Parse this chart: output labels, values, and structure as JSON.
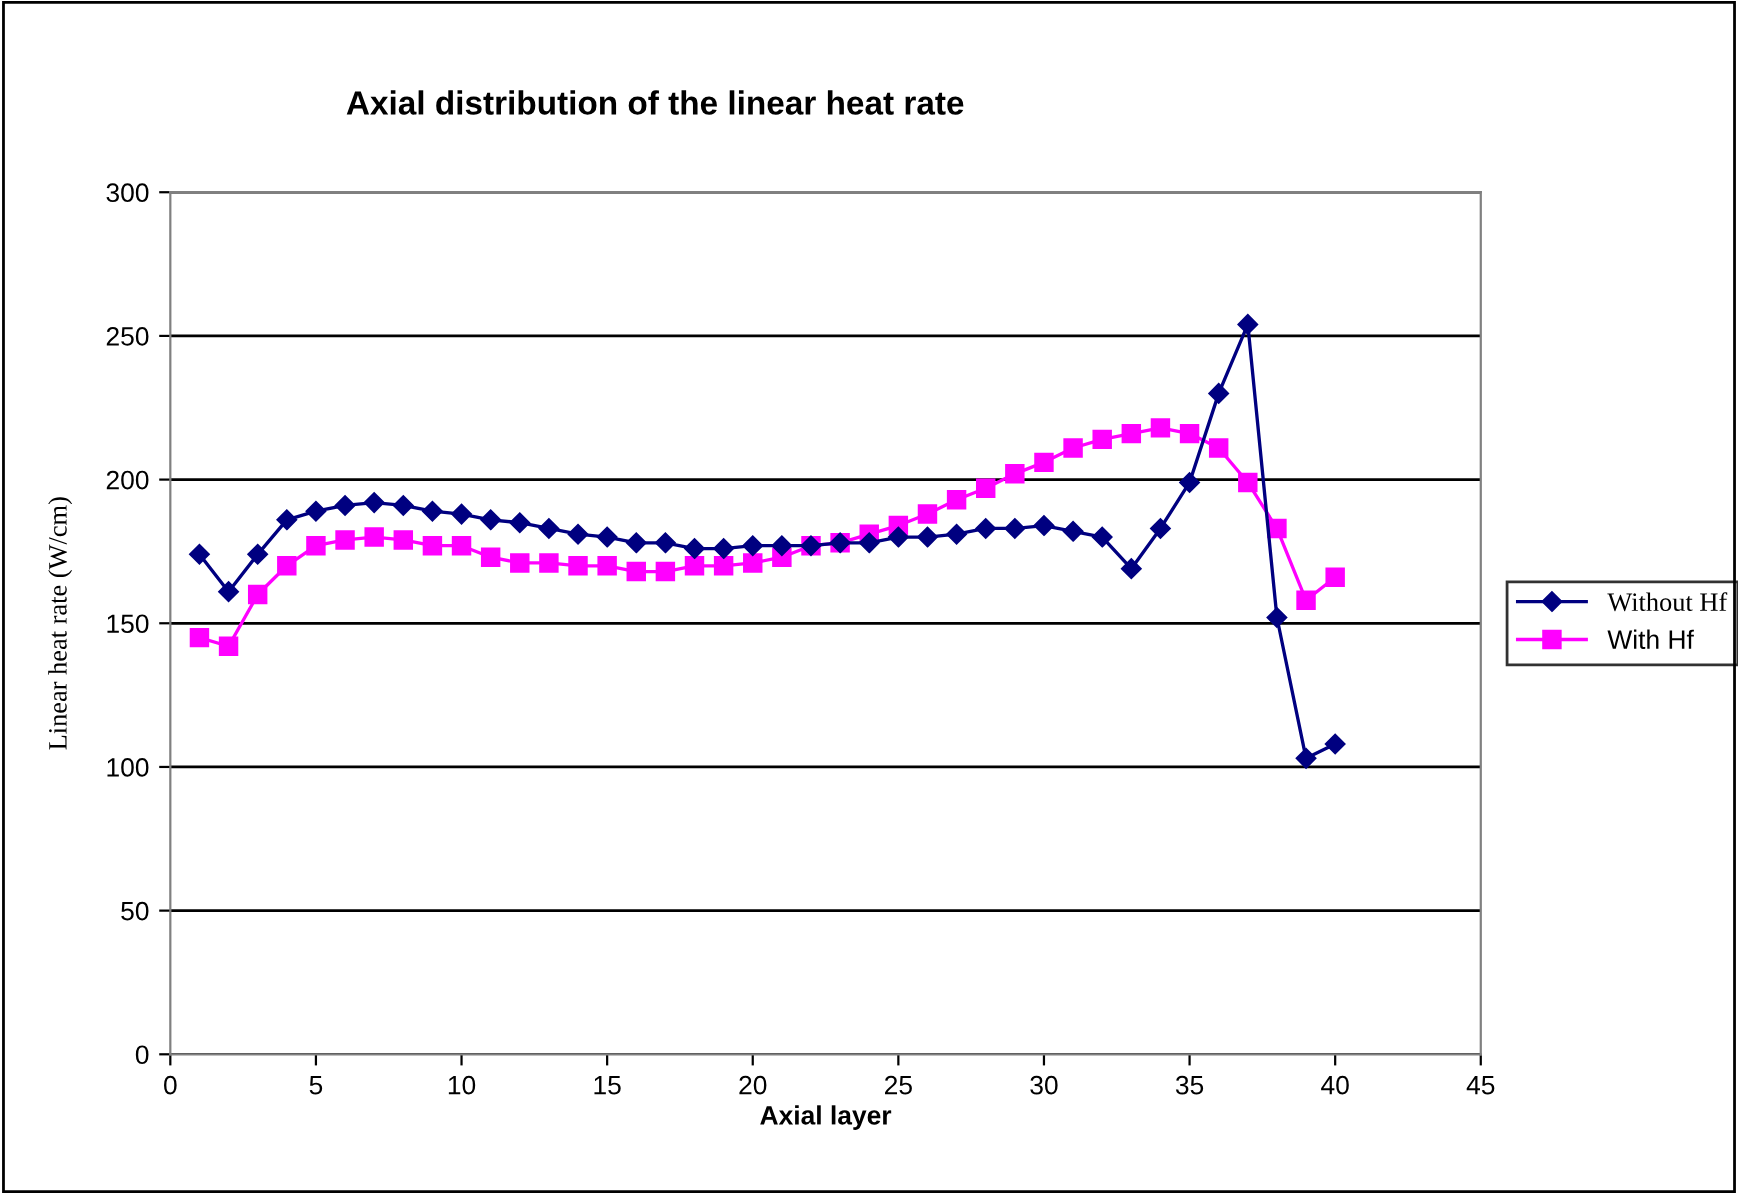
{
  "chart_data": {
    "type": "line",
    "title": "Axial distribution of the linear heat rate",
    "xlabel": "Axial layer",
    "ylabel": "Linear heat rate (W/cm)",
    "x": [
      1,
      2,
      3,
      4,
      5,
      6,
      7,
      8,
      9,
      10,
      11,
      12,
      13,
      14,
      15,
      16,
      17,
      18,
      19,
      20,
      21,
      22,
      23,
      24,
      25,
      26,
      27,
      28,
      29,
      30,
      31,
      32,
      33,
      34,
      35,
      36,
      37,
      38,
      39,
      40
    ],
    "series": [
      {
        "name": "Without Hf",
        "color": "#000080",
        "marker": "diamond",
        "values": [
          174,
          161,
          174,
          186,
          189,
          191,
          192,
          191,
          189,
          188,
          186,
          185,
          183,
          181,
          180,
          178,
          178,
          176,
          176,
          177,
          177,
          177,
          178,
          178,
          180,
          180,
          181,
          183,
          183,
          184,
          182,
          180,
          169,
          183,
          199,
          230,
          254,
          152,
          103,
          108
        ]
      },
      {
        "name": "With Hf",
        "color": "#ff00ff",
        "marker": "square",
        "values": [
          145,
          142,
          160,
          170,
          177,
          179,
          180,
          179,
          177,
          177,
          173,
          171,
          171,
          170,
          170,
          168,
          168,
          170,
          170,
          171,
          173,
          177,
          178,
          181,
          184,
          188,
          193,
          197,
          202,
          206,
          211,
          214,
          216,
          218,
          216,
          211,
          199,
          183,
          158,
          166
        ]
      }
    ],
    "xlim": [
      0,
      45
    ],
    "xticks": [
      0,
      5,
      10,
      15,
      20,
      25,
      30,
      35,
      40,
      45
    ],
    "ylim": [
      0,
      300
    ],
    "yticks": [
      0,
      50,
      100,
      150,
      200,
      250,
      300
    ],
    "grid": "y",
    "legend": "right"
  }
}
